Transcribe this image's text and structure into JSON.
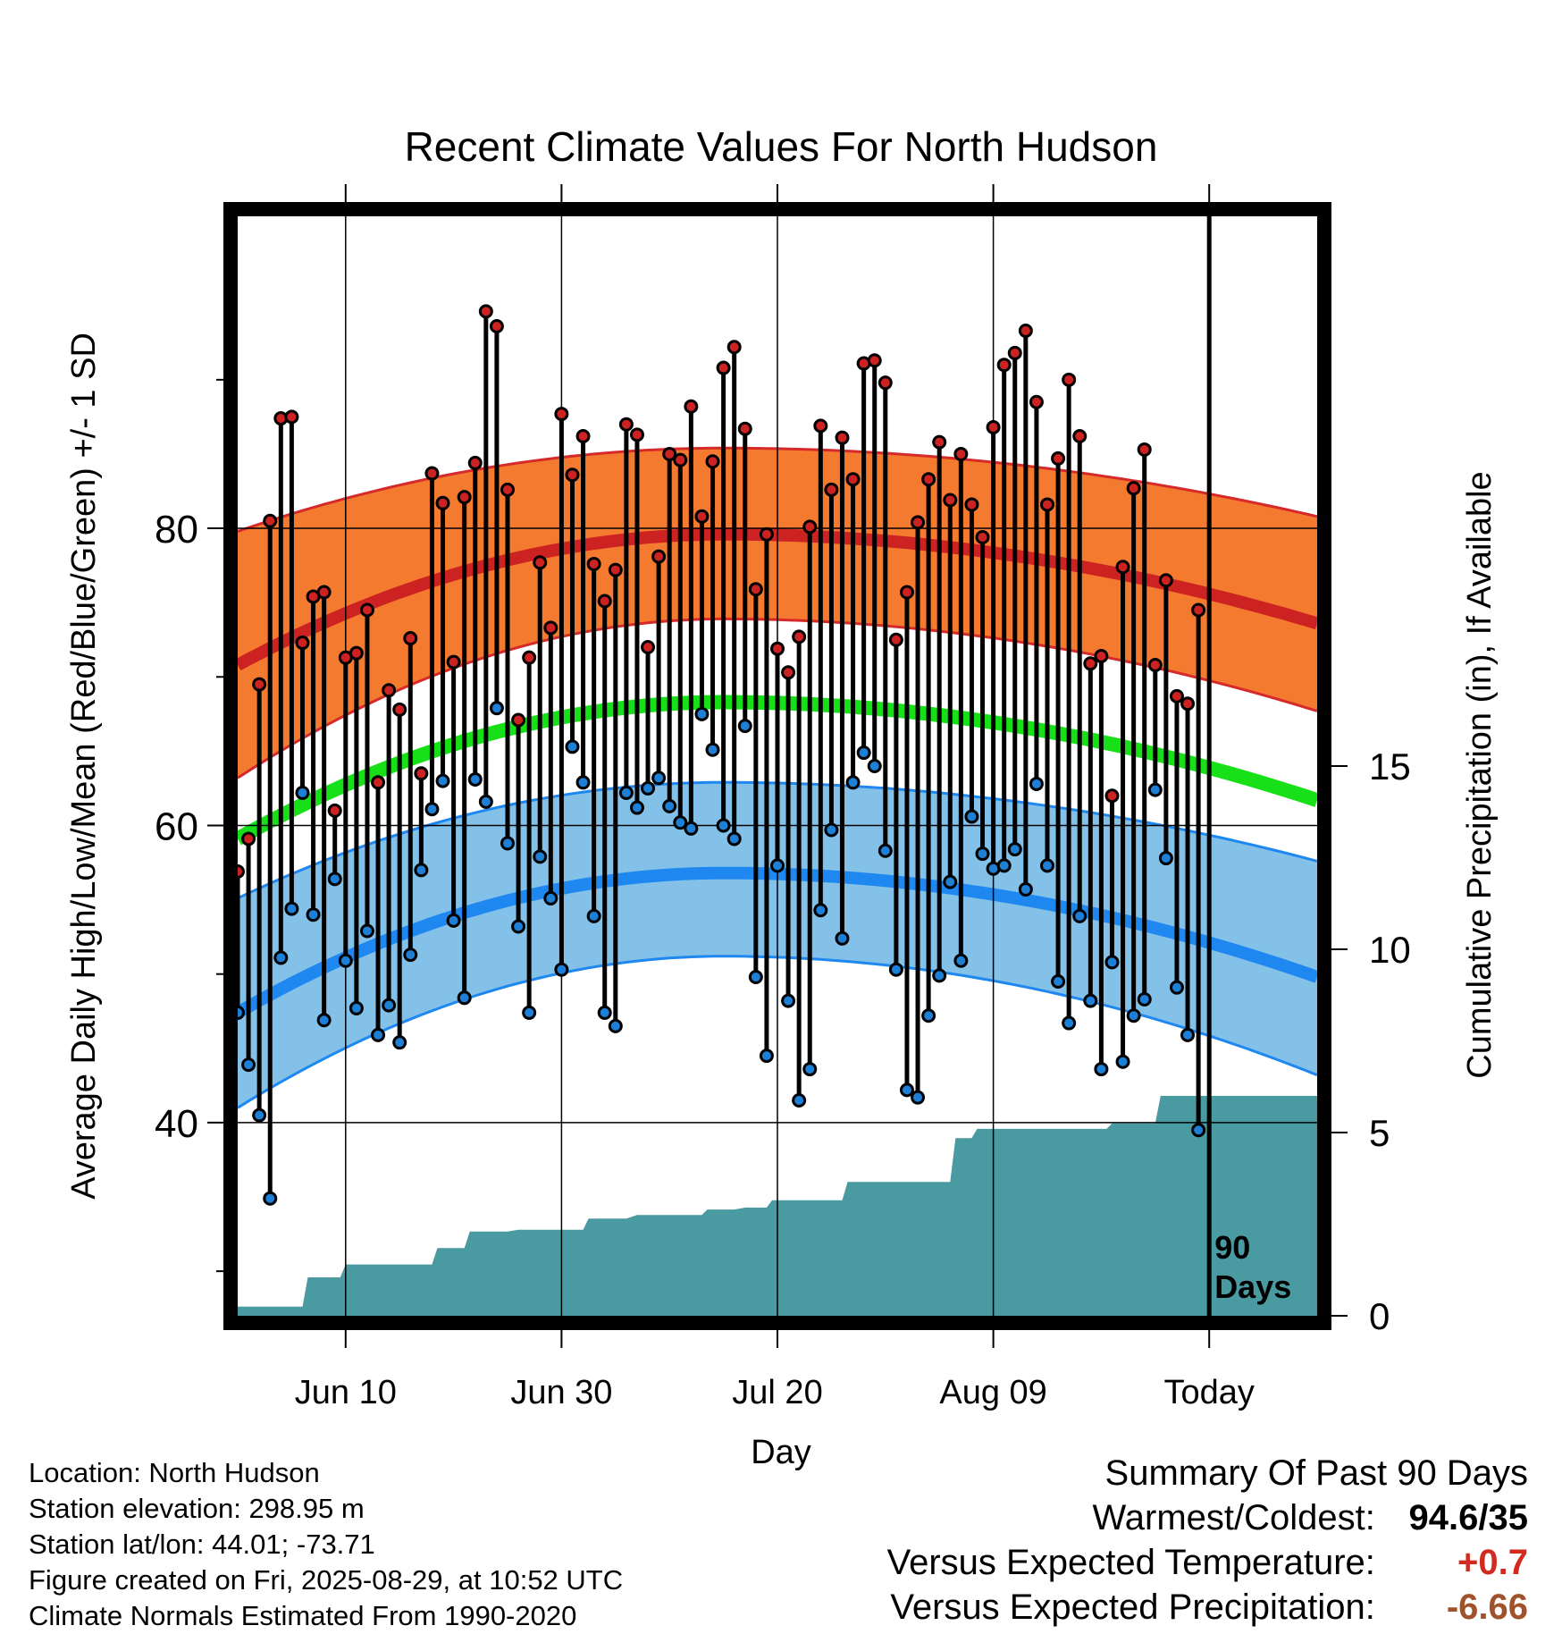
{
  "chart_data": {
    "type": "line",
    "title": "Recent Climate Values For North Hudson",
    "xlabel": "Day",
    "ylabel": "Average Daily High/Low/Mean (Red/Blue/Green) +/- 1 SD",
    "y2label": "Cumulative Precipitation (in), If Available",
    "ylim": [
      27,
      101
    ],
    "y2lim": [
      0,
      30
    ],
    "yticks": [
      40,
      60,
      80
    ],
    "y2ticks": [
      0,
      5,
      10,
      15
    ],
    "x_tick_labels": [
      {
        "day": 10,
        "label": "Jun 10"
      },
      {
        "day": 30,
        "label": "Jun 30"
      },
      {
        "day": 50,
        "label": "Jul 20"
      },
      {
        "day": 70,
        "label": "Aug 09"
      },
      {
        "day": 90,
        "label": "Today"
      }
    ],
    "xlim_days": [
      0,
      100
    ],
    "today_marker": {
      "day": 90,
      "label_line1": "90",
      "label_line2": "Days"
    },
    "grid": true,
    "normals": {
      "high_mean_start": 70.8,
      "high_mean_peak": 79.6,
      "high_mean_end": 73.6,
      "high_sd_upper_start": 79.8,
      "high_sd_upper_peak": 85.4,
      "high_sd_upper_end": 80.8,
      "high_sd_lower_start": 63.2,
      "high_sd_lower_peak": 73.9,
      "high_sd_lower_end": 67.7,
      "low_mean_start": 47.4,
      "low_mean_peak": 56.8,
      "low_mean_end": 49.8,
      "low_sd_upper_start": 55.1,
      "low_sd_upper_peak": 62.9,
      "low_sd_upper_end": 57.6,
      "low_sd_lower_start": 41.0,
      "low_sd_lower_peak": 51.2,
      "low_sd_lower_end": 43.2,
      "mean_start": 59.1,
      "mean_peak": 68.3,
      "mean_end": 61.7,
      "peak_day": 45
    },
    "series": [
      {
        "name": "Daily High",
        "color": "#cc2222",
        "values": [
          56.9,
          59.1,
          69.5,
          80.5,
          87.4,
          87.5,
          72.3,
          75.4,
          75.7,
          61.0,
          71.3,
          71.6,
          74.5,
          62.9,
          69.1,
          67.8,
          72.6,
          63.5,
          83.7,
          81.7,
          71.0,
          82.1,
          84.4,
          94.6,
          93.6,
          82.6,
          67.1,
          71.3,
          77.7,
          73.3,
          87.7,
          83.6,
          86.2,
          77.6,
          75.1,
          77.2,
          87.0,
          86.3,
          72.0,
          78.1,
          85.0,
          84.6,
          88.2,
          80.8,
          84.5,
          90.8,
          92.2,
          86.7,
          75.9,
          79.6,
          71.9,
          70.3,
          72.7,
          80.1,
          86.9,
          82.6,
          86.1,
          83.3,
          91.1,
          91.3,
          89.8,
          72.5,
          75.7,
          80.4,
          83.3,
          85.8,
          81.9,
          85.0,
          81.6,
          79.4,
          86.8,
          91.0,
          91.8,
          93.3,
          88.5,
          81.6,
          84.7,
          90.0,
          86.2,
          70.9,
          71.4,
          62.0,
          77.4,
          82.7,
          85.3,
          70.8,
          76.5,
          68.7,
          68.2,
          74.5
        ]
      },
      {
        "name": "Daily Low",
        "color": "#1e7fd6",
        "values": [
          47.4,
          43.9,
          40.5,
          34.9,
          51.1,
          54.4,
          62.2,
          54.0,
          46.9,
          56.4,
          50.9,
          47.7,
          52.9,
          45.9,
          47.9,
          45.4,
          51.3,
          57.0,
          61.1,
          63.0,
          53.6,
          48.4,
          63.1,
          61.6,
          67.9,
          58.8,
          53.2,
          47.4,
          57.9,
          55.1,
          50.3,
          65.3,
          62.9,
          53.9,
          47.4,
          46.5,
          62.2,
          61.2,
          62.5,
          63.2,
          61.3,
          60.2,
          59.8,
          67.5,
          65.1,
          60.0,
          59.1,
          66.7,
          49.8,
          44.5,
          57.3,
          48.2,
          41.5,
          43.6,
          54.3,
          59.7,
          52.4,
          62.9,
          64.9,
          64.0,
          58.3,
          50.3,
          42.2,
          41.7,
          47.2,
          49.9,
          56.2,
          50.9,
          60.6,
          58.1,
          57.1,
          57.3,
          58.4,
          55.7,
          62.8,
          57.3,
          49.5,
          46.7,
          53.9,
          48.2,
          43.6,
          50.8,
          44.1,
          47.2,
          48.3,
          62.4,
          57.8,
          49.1,
          45.9,
          39.5
        ]
      },
      {
        "name": "Cumulative Precipitation",
        "color": "#4a9aa2",
        "steps": [
          [
            0,
            0.25
          ],
          [
            6,
            0.25
          ],
          [
            6.5,
            1.05
          ],
          [
            9.5,
            1.05
          ],
          [
            10,
            1.4
          ],
          [
            18,
            1.4
          ],
          [
            18.5,
            1.85
          ],
          [
            21,
            1.85
          ],
          [
            21.5,
            2.3
          ],
          [
            25,
            2.3
          ],
          [
            26,
            2.35
          ],
          [
            32,
            2.35
          ],
          [
            32.5,
            2.65
          ],
          [
            36,
            2.65
          ],
          [
            37,
            2.75
          ],
          [
            43,
            2.75
          ],
          [
            43.5,
            2.9
          ],
          [
            46,
            2.9
          ],
          [
            47,
            2.95
          ],
          [
            49,
            2.95
          ],
          [
            49.5,
            3.15
          ],
          [
            56,
            3.15
          ],
          [
            56.5,
            3.65
          ],
          [
            66,
            3.65
          ],
          [
            66.5,
            4.85
          ],
          [
            68,
            4.85
          ],
          [
            68.5,
            5.1
          ],
          [
            80.5,
            5.1
          ],
          [
            81,
            5.25
          ],
          [
            85,
            5.25
          ],
          [
            85.5,
            6.0
          ],
          [
            100,
            6.0
          ]
        ]
      }
    ]
  },
  "footer": {
    "location": "Location: North Hudson",
    "elevation": "Station elevation: 298.95 m",
    "latlon": "Station lat/lon: 44.01; -73.71",
    "created": "Figure created on Fri, 2025-08-29, at 10:52 UTC",
    "normals_period": "Climate Normals Estimated From 1990-2020"
  },
  "summary": {
    "heading": "Summary Of Past 90 Days",
    "warm_cold_label": "Warmest/Coldest:",
    "warm_cold_value": "94.6/35",
    "temp_label": "Versus Expected Temperature:",
    "temp_value": "+0.7",
    "temp_color": "#d22a1e",
    "precip_label": "Versus Expected Precipitation:",
    "precip_value": "-6.66",
    "precip_color": "#a0522d"
  }
}
